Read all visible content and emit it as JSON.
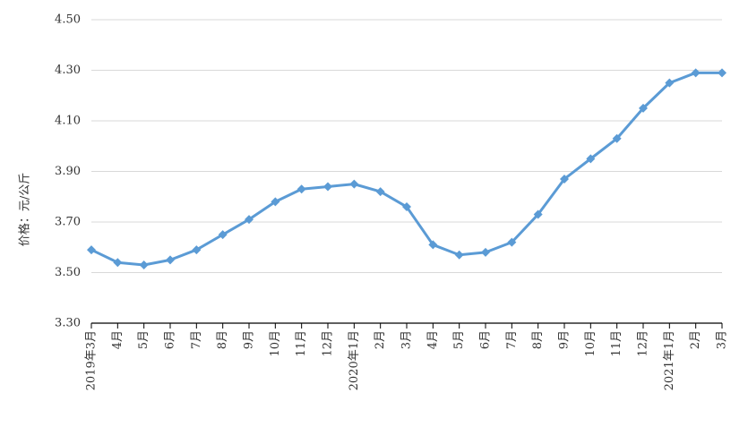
{
  "chart_data": {
    "type": "line",
    "y_label": "价格：元/公斤",
    "categories": [
      "2019年3月",
      "4月",
      "5月",
      "6月",
      "7月",
      "8月",
      "9月",
      "10月",
      "11月",
      "12月",
      "2020年1月",
      "2月",
      "3月",
      "4月",
      "5月",
      "6月",
      "7月",
      "8月",
      "9月",
      "10月",
      "11月",
      "12月",
      "2021年1月",
      "2月",
      "3月"
    ],
    "series": [
      {
        "color": "#5b9bd5",
        "values": [
          3.59,
          3.54,
          3.53,
          3.55,
          3.59,
          3.65,
          3.71,
          3.78,
          3.83,
          3.84,
          3.85,
          3.82,
          3.76,
          3.61,
          3.57,
          3.58,
          3.62,
          3.73,
          3.87,
          3.95,
          4.03,
          4.15,
          4.25,
          4.29,
          4.29
        ]
      }
    ],
    "ylim": [
      3.3,
      4.5
    ],
    "yticks": [
      {
        "value": 3.3,
        "label": "3.30"
      },
      {
        "value": 3.5,
        "label": "3.50"
      },
      {
        "value": 3.7,
        "label": "3.70"
      },
      {
        "value": 3.9,
        "label": "3.90"
      },
      {
        "value": 4.1,
        "label": "4.10"
      },
      {
        "value": 4.3,
        "label": "4.30"
      },
      {
        "value": 4.5,
        "label": "4.50"
      }
    ],
    "grid": true
  }
}
